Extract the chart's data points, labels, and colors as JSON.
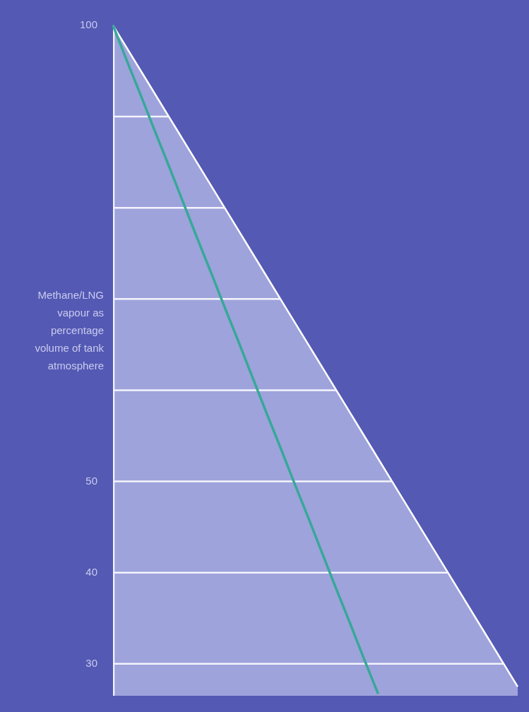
{
  "chart_data": {
    "type": "area",
    "ylabel": "Methane/LNG vapour as percentage volume of tank atmosphere",
    "categories": [
      null,
      null,
      null,
      null,
      null,
      null,
      null,
      null,
      null,
      null,
      null,
      null,
      null,
      null,
      null,
      null,
      null,
      null,
      null,
      null,
      null,
      null,
      null,
      null,
      null,
      null,
      null,
      null,
      null,
      null
    ],
    "ylim": [
      26.5,
      101
    ],
    "yticks": [
      {
        "value": 30,
        "label": "30"
      },
      {
        "value": 40,
        "label": "40"
      },
      {
        "value": 50,
        "label": "50"
      },
      {
        "value": 60,
        "label": null
      },
      {
        "value": 70,
        "label": null
      },
      {
        "value": 80,
        "label": null
      },
      {
        "value": 90,
        "label": null
      },
      {
        "value": 100,
        "label": "100"
      }
    ],
    "tick_labels": "y",
    "grid": "y",
    "legend": false,
    "series": [
      {
        "color": "#9ea3dc",
        "values": [
          100,
          97.5,
          95,
          92.5,
          90,
          87.5,
          85,
          82.5,
          80,
          77.5,
          75,
          72.5,
          70,
          67.5,
          65,
          62.5,
          60,
          57.5,
          55,
          52.5,
          50,
          47.5,
          45,
          42.5,
          40,
          37.5,
          35,
          32.5,
          30,
          27.5
        ]
      },
      {
        "type": "line",
        "color": "#38a898",
        "values": [
          100,
          96.1,
          92.3,
          88.4,
          84.6,
          80.7,
          76.8,
          73.0,
          69.1,
          65.3,
          61.4,
          57.5,
          53.7,
          49.8,
          46.0,
          42.1,
          38.2,
          34.4,
          30.5,
          26.7,
          null,
          null,
          null,
          null,
          null,
          null,
          null,
          null,
          null,
          null
        ]
      }
    ]
  }
}
